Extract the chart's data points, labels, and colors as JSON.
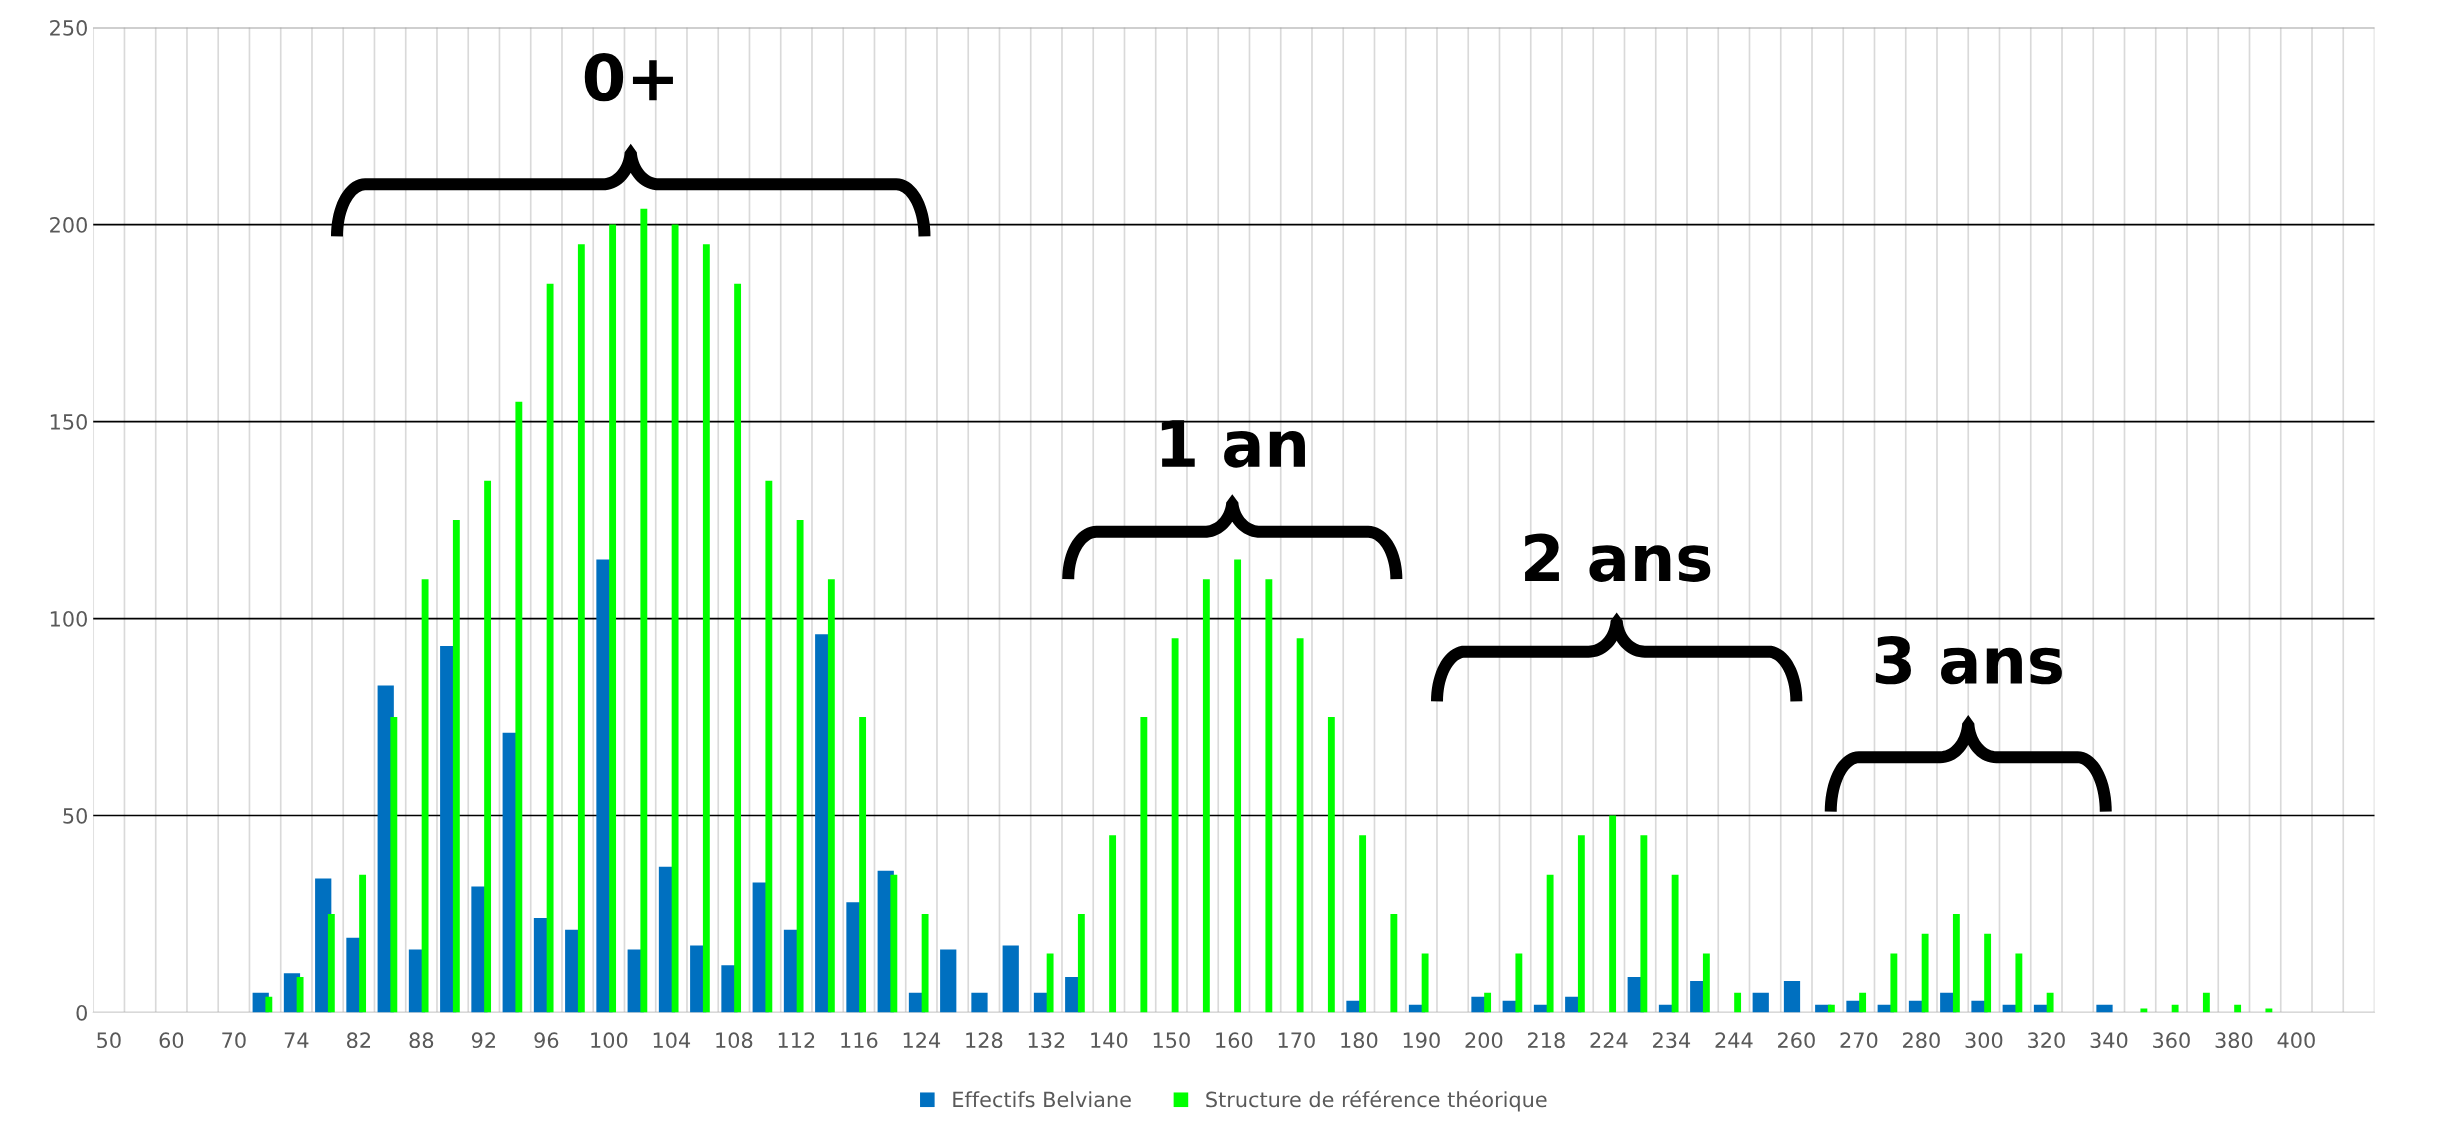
{
  "chart_data": {
    "type": "bar",
    "categories": [
      "50",
      null,
      "60",
      null,
      "70",
      null,
      "74",
      null,
      "82",
      null,
      "88",
      null,
      "92",
      null,
      "96",
      null,
      "100",
      null,
      "104",
      null,
      "108",
      null,
      "112",
      null,
      "116",
      null,
      "124",
      null,
      "128",
      null,
      "132",
      null,
      "140",
      null,
      "150",
      null,
      "160",
      null,
      "170",
      null,
      "180",
      null,
      "190",
      null,
      "200",
      null,
      "218",
      null,
      "224",
      null,
      "234",
      null,
      "244",
      null,
      "260",
      null,
      "270",
      null,
      "280",
      null,
      "300",
      null,
      "320",
      null,
      "340",
      null,
      "360",
      null,
      "380",
      null,
      "400",
      null,
      null
    ],
    "series": [
      {
        "name": "Effectifs Belviane",
        "color": "#0070c0",
        "values": [
          0,
          0,
          0,
          0,
          0,
          5,
          10,
          34,
          19,
          83,
          16,
          93,
          32,
          71,
          24,
          21,
          115,
          16,
          37,
          17,
          12,
          33,
          21,
          96,
          28,
          36,
          5,
          16,
          5,
          17,
          5,
          9,
          0,
          0,
          0,
          0,
          0,
          0,
          0,
          0,
          3,
          0,
          2,
          0,
          4,
          3,
          2,
          4,
          0,
          9,
          2,
          8,
          0,
          5,
          8,
          2,
          3,
          2,
          3,
          5,
          3,
          2,
          2,
          0,
          2,
          0,
          0,
          0,
          0,
          0,
          0,
          0,
          0
        ]
      },
      {
        "name": "Structure de référence théorique",
        "color": "#00ff00",
        "values": [
          0,
          0,
          0,
          0,
          0,
          4,
          9,
          25,
          35,
          75,
          110,
          125,
          135,
          155,
          185,
          195,
          200,
          204,
          200,
          195,
          185,
          135,
          125,
          110,
          75,
          35,
          25,
          0,
          0,
          0,
          15,
          25,
          45,
          75,
          95,
          110,
          115,
          110,
          95,
          75,
          45,
          25,
          15,
          0,
          5,
          15,
          35,
          45,
          50,
          45,
          35,
          15,
          5,
          0,
          0,
          2,
          5,
          15,
          20,
          25,
          20,
          15,
          5,
          0,
          0,
          1,
          2,
          5,
          2,
          1,
          0,
          0,
          0
        ]
      }
    ],
    "ylim": [
      0,
      250
    ],
    "yticks": [
      0,
      50,
      100,
      150,
      200,
      250
    ],
    "grid": true,
    "legend": "bottom",
    "annotations": [
      "0+",
      "1 an",
      "2 ans",
      "3 ans"
    ]
  }
}
